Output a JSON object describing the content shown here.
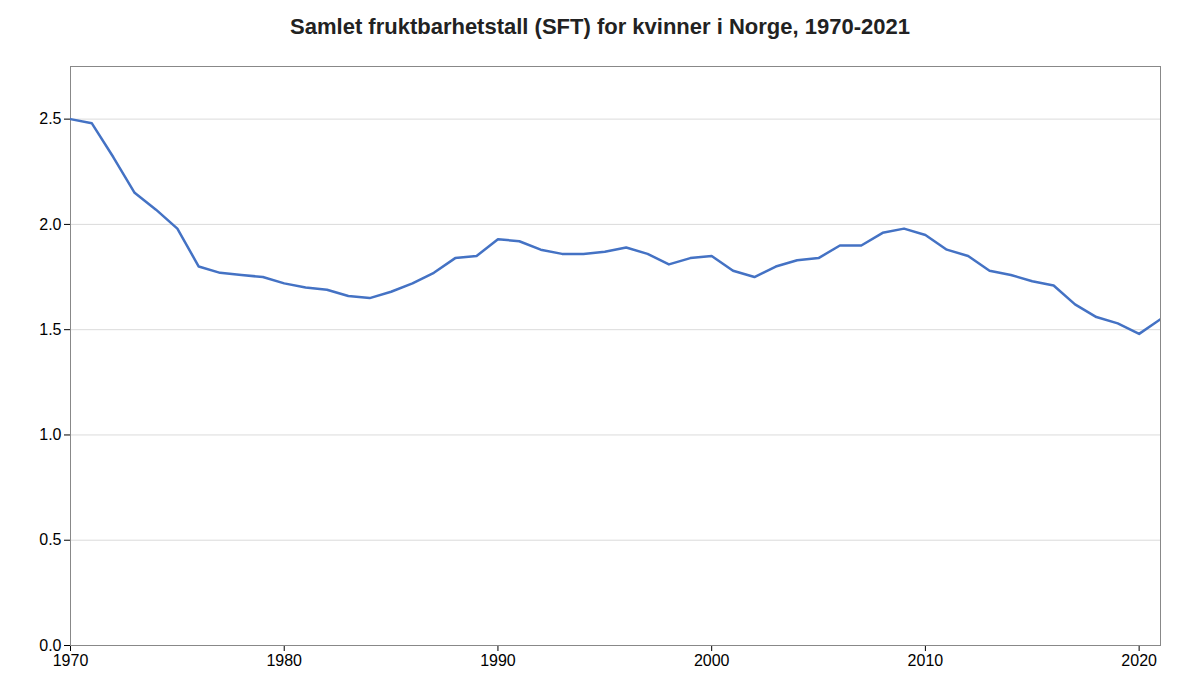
{
  "chart_data": {
    "type": "line",
    "title": "Samlet fruktbarhetstall (SFT) for kvinner i Norge, 1970-2021",
    "x": [
      1970,
      1971,
      1972,
      1973,
      1974,
      1975,
      1976,
      1977,
      1978,
      1979,
      1980,
      1981,
      1982,
      1983,
      1984,
      1985,
      1986,
      1987,
      1988,
      1989,
      1990,
      1991,
      1992,
      1993,
      1994,
      1995,
      1996,
      1997,
      1998,
      1999,
      2000,
      2001,
      2002,
      2003,
      2004,
      2005,
      2006,
      2007,
      2008,
      2009,
      2010,
      2011,
      2012,
      2013,
      2014,
      2015,
      2016,
      2017,
      2018,
      2019,
      2020,
      2021
    ],
    "values": [
      2.5,
      2.48,
      2.32,
      2.15,
      2.07,
      1.98,
      1.8,
      1.77,
      1.76,
      1.75,
      1.72,
      1.7,
      1.69,
      1.66,
      1.65,
      1.68,
      1.72,
      1.77,
      1.84,
      1.85,
      1.93,
      1.92,
      1.88,
      1.86,
      1.86,
      1.87,
      1.89,
      1.86,
      1.81,
      1.84,
      1.85,
      1.78,
      1.75,
      1.8,
      1.83,
      1.84,
      1.9,
      1.9,
      1.96,
      1.98,
      1.95,
      1.88,
      1.85,
      1.78,
      1.76,
      1.73,
      1.71,
      1.62,
      1.56,
      1.53,
      1.48,
      1.55
    ],
    "color": "#4472C4",
    "xlim": [
      1970,
      2021
    ],
    "xticks": [
      1970,
      1980,
      1990,
      2000,
      2010,
      2020
    ],
    "ylim": [
      0.0,
      2.75
    ],
    "yticks": [
      {
        "value": 0,
        "label": "0.0"
      },
      0.5,
      {
        "value": 1,
        "label": "1.0"
      },
      1.5,
      {
        "value": 2,
        "label": "2.0"
      },
      2.5
    ],
    "grid": true
  }
}
